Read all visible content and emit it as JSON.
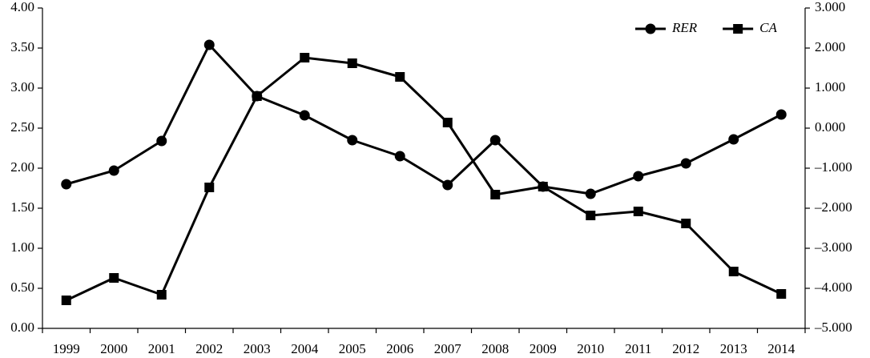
{
  "chart_data": {
    "type": "line",
    "categories": [
      "1999",
      "2000",
      "2001",
      "2002",
      "2003",
      "2004",
      "2005",
      "2006",
      "2007",
      "2008",
      "2009",
      "2010",
      "2011",
      "2012",
      "2013",
      "2014"
    ],
    "series": [
      {
        "name": "RER",
        "color": "#000000",
        "marker": "circle",
        "values": [
          1.8,
          1.97,
          2.34,
          3.54,
          2.9,
          2.66,
          2.35,
          2.15,
          1.79,
          2.35,
          1.77,
          1.68,
          1.9,
          2.06,
          2.36,
          2.67
        ]
      },
      {
        "name": "CA",
        "color": "#000000",
        "marker": "square",
        "axis": "y2",
        "values": [
          -4.3,
          -3.74,
          -4.16,
          -1.48,
          0.8,
          1.76,
          1.62,
          1.28,
          0.14,
          -1.66,
          -1.46,
          -2.18,
          -2.08,
          -2.38,
          -3.58,
          -4.14
        ]
      }
    ],
    "ylim": [
      0,
      4
    ],
    "yticks": [
      {
        "value": 0,
        "label": "0.00"
      },
      {
        "value": 0.5,
        "label": "0.50"
      },
      {
        "value": 1,
        "label": "1.00"
      },
      {
        "value": 1.5,
        "label": "1.50"
      },
      {
        "value": 2,
        "label": "2.00"
      },
      {
        "value": 2.5,
        "label": "2.50"
      },
      {
        "value": 3,
        "label": "3.00"
      },
      {
        "value": 3.5,
        "label": "3.50"
      },
      {
        "value": 4,
        "label": "4.00"
      }
    ],
    "y2lim": [
      -5,
      3
    ],
    "y2ticks": [
      {
        "value": -5,
        "label": "–5.000"
      },
      {
        "value": -4,
        "label": "–4.000"
      },
      {
        "value": -3,
        "label": "–3.000"
      },
      {
        "value": -2,
        "label": "–2.000"
      },
      {
        "value": -1,
        "label": "–1.000"
      },
      {
        "value": 0,
        "label": "0.000"
      },
      {
        "value": 1,
        "label": "1.000"
      },
      {
        "value": 2,
        "label": "2.000"
      },
      {
        "value": 3,
        "label": "3.000"
      }
    ],
    "grid": false,
    "legend": "upper right"
  }
}
